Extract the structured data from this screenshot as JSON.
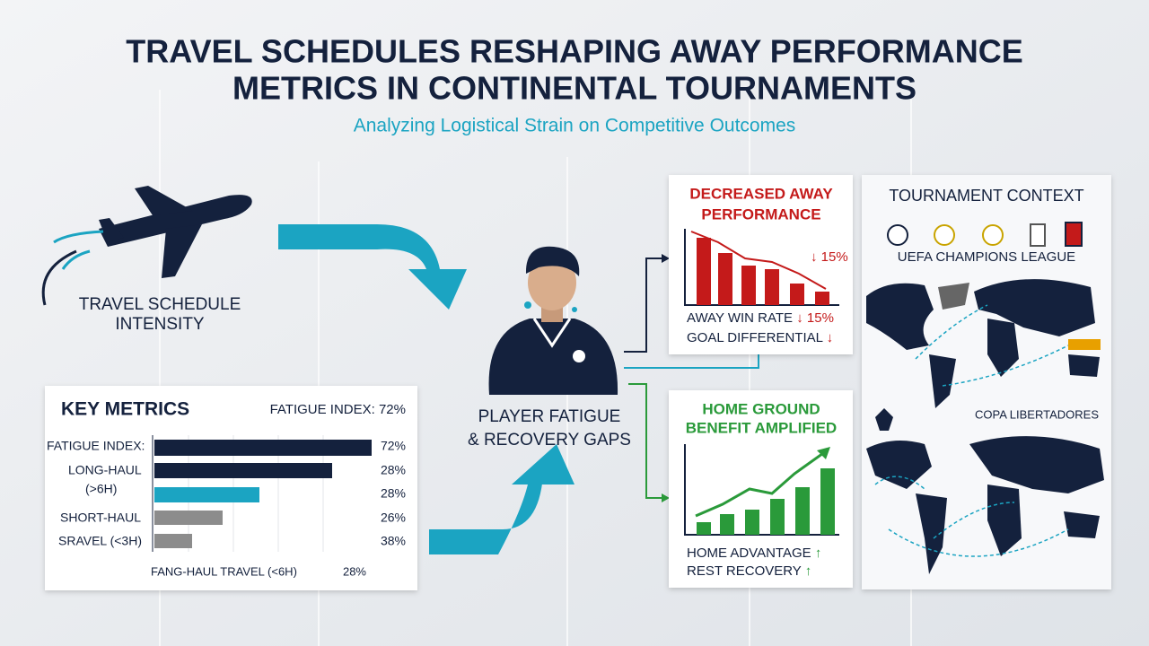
{
  "header": {
    "title_line1": "TRAVEL SCHEDULES RESHAPING AWAY PERFORMANCE",
    "title_line2": "METRICS IN CONTINENTAL TOURNAMENTS",
    "subtitle": "Analyzing Logistical Strain on Competitive Outcomes"
  },
  "travel": {
    "label_line1": "TRAVEL SCHEDULE",
    "label_line2": "INTENSITY"
  },
  "key_metrics": {
    "title": "KEY METRICS",
    "headline": "FATIGUE INDEX: 72%",
    "rows": [
      {
        "label": "FATIGUE INDEX:",
        "value": "72%"
      },
      {
        "label": "LONG-HAUL",
        "value": "28%"
      },
      {
        "label": "(>6H)",
        "value": "28%"
      },
      {
        "label": "SHORT-HAUL",
        "value": "26%"
      },
      {
        "label": "SRAVEL (<3H)",
        "value": "38%"
      }
    ],
    "footer_label": "FANG-HAUL TRAVEL (<6H)",
    "footer_value": "28%"
  },
  "fatigue": {
    "line1": "PLAYER FATIGUE",
    "line2": "& RECOVERY GAPS"
  },
  "decreased": {
    "title_line1": "DECREASED AWAY",
    "title_line2": "PERFORMANCE",
    "chart_note": "↓ 15%",
    "items": [
      {
        "label": "AWAY WIN RATE",
        "trend": "↓ 15%"
      },
      {
        "label": "GOAL DIFFERENTIAL",
        "trend": "↓"
      }
    ]
  },
  "home": {
    "title_line1": "HOME GROUND",
    "title_line2": "BENEFIT AMPLIFIED",
    "items": [
      {
        "label": "HOME ADVANTAGE",
        "trend": "↑"
      },
      {
        "label": "REST RECOVERY",
        "trend": "↑"
      }
    ]
  },
  "context": {
    "title": "TOURNAMENT CONTEXT",
    "league1": "UEFA CHAMPIONS LEAGUE",
    "league2": "COPA LIBERTADORES"
  }
}
